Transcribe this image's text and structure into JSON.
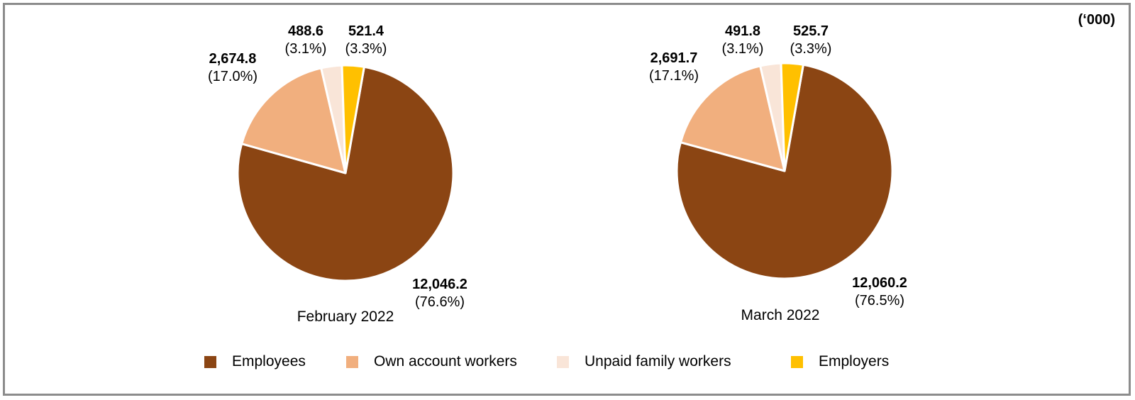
{
  "page": {
    "units_note": "(‘000)"
  },
  "frame": {
    "border_color": "#8C8C8C",
    "background": "#FFFFFF"
  },
  "legend": {
    "position": "bottom",
    "items": [
      {
        "label": "Employees",
        "color": "#8B4513"
      },
      {
        "label": "Own account workers",
        "color": "#F1AF7E"
      },
      {
        "label": "Unpaid family workers",
        "color": "#F9E5D8"
      },
      {
        "label": "Employers",
        "color": "#FFC000"
      }
    ]
  },
  "chart_data": [
    {
      "type": "pie",
      "title": "February 2022",
      "layout": {
        "start_angle_deg": 10,
        "direction": "clockwise",
        "slice_border_color": "#FFFFFF"
      },
      "slices": [
        {
          "key": "employees",
          "name": "Employees",
          "value": 12046.2,
          "pct": 76.6,
          "value_label": "12,046.2",
          "pct_label": "(76.6%)",
          "color": "#8B4513"
        },
        {
          "key": "own-account-workers",
          "name": "Own account workers",
          "value": 2674.8,
          "pct": 17.0,
          "value_label": "2,674.8",
          "pct_label": "(17.0%)",
          "color": "#F1AF7E"
        },
        {
          "key": "unpaid-family-workers",
          "name": "Unpaid family workers",
          "value": 488.6,
          "pct": 3.1,
          "value_label": "488.6",
          "pct_label": "(3.1%)",
          "color": "#F9E5D8"
        },
        {
          "key": "employers",
          "name": "Employers",
          "value": 521.4,
          "pct": 3.3,
          "value_label": "521.4",
          "pct_label": "(3.3%)",
          "color": "#FFC000"
        }
      ]
    },
    {
      "type": "pie",
      "title": "March 2022",
      "layout": {
        "start_angle_deg": 10,
        "direction": "clockwise",
        "slice_border_color": "#FFFFFF"
      },
      "slices": [
        {
          "key": "employees",
          "name": "Employees",
          "value": 12060.2,
          "pct": 76.5,
          "value_label": "12,060.2",
          "pct_label": "(76.5%)",
          "color": "#8B4513"
        },
        {
          "key": "own-account-workers",
          "name": "Own account workers",
          "value": 2691.7,
          "pct": 17.1,
          "value_label": "2,691.7",
          "pct_label": "(17.1%)",
          "color": "#F1AF7E"
        },
        {
          "key": "unpaid-family-workers",
          "name": "Unpaid family workers",
          "value": 491.8,
          "pct": 3.1,
          "value_label": "491.8",
          "pct_label": "(3.1%)",
          "color": "#F9E5D8"
        },
        {
          "key": "employers",
          "name": "Employers",
          "value": 525.7,
          "pct": 3.3,
          "value_label": "525.7",
          "pct_label": "(3.3%)",
          "color": "#FFC000"
        }
      ]
    }
  ]
}
